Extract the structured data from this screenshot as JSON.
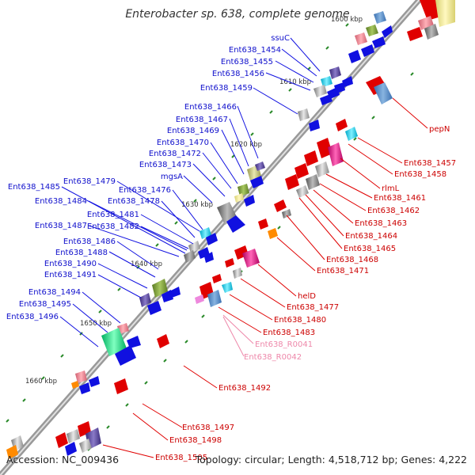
{
  "title": "Enterobacter sp. 638, complete genome",
  "footer": {
    "accession": "Accession: NC_009436",
    "topology": "Topology: circular; Length: 4,518,712 bp; Genes: 4,222"
  },
  "colors": {
    "left_label": "#1010cc",
    "right_label": "#cc0000",
    "rna_label": "#ee88aa",
    "backbone": "#888888",
    "tick": "#2a8a2a"
  },
  "ticks": [
    "1600 kbp",
    "1610 kbp",
    "1620 kbp",
    "1630 kbp",
    "1640 kbp",
    "1650 kbp",
    "1660 kbp"
  ],
  "left_labels": [
    "ssuC",
    "Ent638_1454",
    "Ent638_1455",
    "Ent638_1456",
    "Ent638_1459",
    "Ent638_1466",
    "Ent638_1467",
    "Ent638_1469",
    "Ent638_1470",
    "Ent638_1472",
    "Ent638_1473",
    "mgsA",
    "Ent638_1479",
    "Ent638_1476",
    "Ent638_1485",
    "Ent638_1478",
    "Ent638_1484",
    "Ent638_1481",
    "Ent638_1482",
    "Ent638_1487",
    "Ent638_1486",
    "Ent638_1488",
    "Ent638_1490",
    "Ent638_1491",
    "Ent638_1494",
    "Ent638_1495",
    "Ent638_1496"
  ],
  "right_labels": [
    "pepN",
    "Ent638_1457",
    "Ent638_1458",
    "rlmL",
    "Ent638_1461",
    "Ent638_1462",
    "Ent638_1463",
    "Ent638_1464",
    "Ent638_1465",
    "Ent638_1468",
    "Ent638_1471",
    "helD",
    "Ent638_1477",
    "Ent638_1480",
    "Ent638_1483",
    "Ent638_R0041",
    "Ent638_R0042",
    "Ent638_1492",
    "Ent638_1497",
    "Ent638_1498",
    "Ent638_1505"
  ]
}
